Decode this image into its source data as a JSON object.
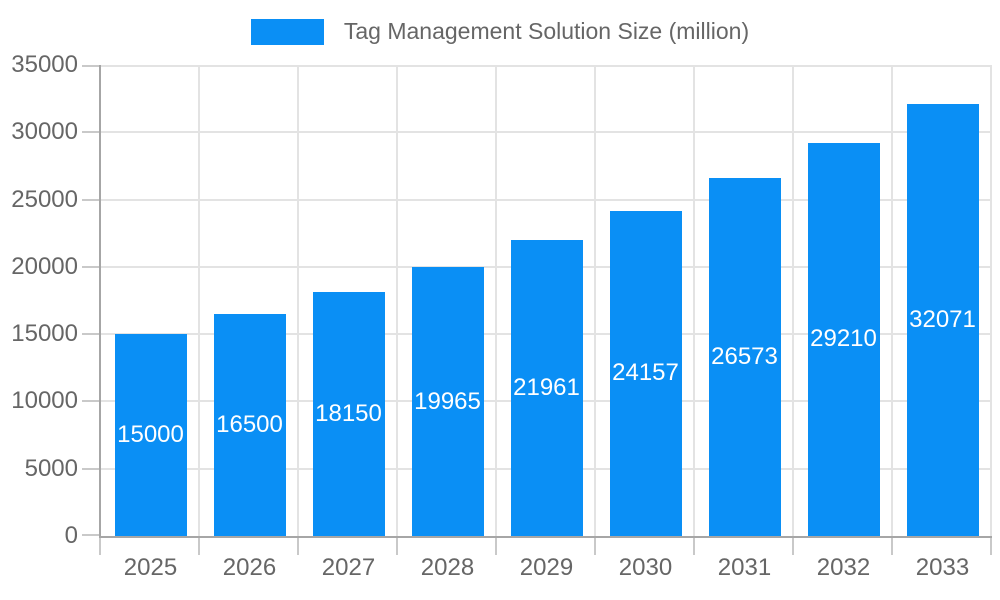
{
  "chart_data": {
    "type": "bar",
    "title": "Tag Management Solution Size (million)",
    "categories": [
      "2025",
      "2026",
      "2027",
      "2028",
      "2029",
      "2030",
      "2031",
      "2032",
      "2033"
    ],
    "values": [
      15000,
      16500,
      18150,
      19965,
      21961,
      24157,
      26573,
      29210,
      32071
    ],
    "series": [
      {
        "name": "Tag Management Solution Size (million)",
        "values": [
          15000,
          16500,
          18150,
          19965,
          21961,
          24157,
          26573,
          29210,
          32071
        ]
      }
    ],
    "xlabel": "",
    "ylabel": "",
    "ylim": [
      0,
      35000
    ],
    "ytick_step": 5000,
    "yticks": [
      0,
      5000,
      10000,
      15000,
      20000,
      25000,
      30000,
      35000
    ],
    "grid": true,
    "legend_position": "top",
    "value_labels": "centered-inside-bars",
    "colors": {
      "bar": "#0A8FF5",
      "value_label": "#FFFFFF",
      "axis_text": "#666666",
      "grid_line": "#E3E3E3",
      "axis_line": "#A6A6A6",
      "tick_mark": "#C9C9C9",
      "background": "#FFFFFF"
    }
  }
}
